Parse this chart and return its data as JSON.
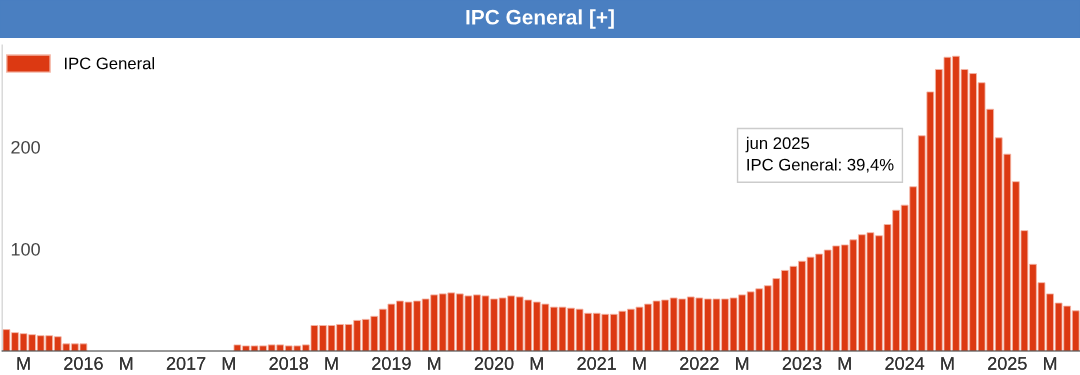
{
  "chart_data": {
    "type": "bar",
    "title": "IPC General [+]",
    "categories": [
      null,
      null,
      "M",
      null,
      null,
      null,
      null,
      null,
      null,
      "2016",
      null,
      null,
      null,
      null,
      "M",
      null,
      null,
      null,
      null,
      null,
      null,
      "2017",
      null,
      null,
      null,
      null,
      "M",
      null,
      null,
      null,
      null,
      null,
      null,
      "2018",
      null,
      null,
      null,
      null,
      "M",
      null,
      null,
      null,
      null,
      null,
      null,
      "2019",
      null,
      null,
      null,
      null,
      "M",
      null,
      null,
      null,
      null,
      null,
      null,
      "2020",
      null,
      null,
      null,
      null,
      "M",
      null,
      null,
      null,
      null,
      null,
      null,
      "2021",
      null,
      null,
      null,
      null,
      "M",
      null,
      null,
      null,
      null,
      null,
      null,
      "2022",
      null,
      null,
      null,
      null,
      "M",
      null,
      null,
      null,
      null,
      null,
      null,
      "2023",
      null,
      null,
      null,
      null,
      "M",
      null,
      null,
      null,
      null,
      null,
      null,
      "2024",
      null,
      null,
      null,
      null,
      "M",
      null,
      null,
      null,
      null,
      null,
      null,
      "2025",
      null,
      null,
      null,
      null,
      "M",
      null,
      null,
      null
    ],
    "series": [
      {
        "name": "IPC General",
        "color": "#dc3912",
        "values": [
          21,
          18,
          17,
          16,
          15,
          15,
          14,
          7,
          7,
          7,
          null,
          null,
          null,
          null,
          null,
          null,
          null,
          null,
          null,
          null,
          null,
          null,
          null,
          null,
          null,
          null,
          null,
          6,
          5,
          5,
          5,
          6,
          6,
          5,
          5,
          6,
          25,
          25,
          25,
          26,
          26,
          30,
          31,
          34,
          41,
          46,
          49,
          48,
          49,
          51,
          55,
          56,
          57,
          56,
          54,
          55,
          54,
          51,
          52,
          54,
          53,
          50,
          48,
          46,
          43,
          43,
          42,
          41,
          37,
          37,
          36,
          36,
          39,
          41,
          43,
          46,
          49,
          50,
          52,
          51,
          53,
          52,
          51,
          51,
          51,
          52,
          55,
          58,
          61,
          64,
          71,
          79,
          83,
          88,
          92,
          95,
          99,
          103,
          104,
          109,
          114,
          116,
          113,
          124,
          138,
          143,
          161,
          211,
          254,
          276,
          288,
          289,
          276,
          272,
          263,
          237,
          209,
          193,
          166,
          118,
          85,
          67,
          56,
          47,
          44,
          39.4
        ]
      }
    ],
    "ylim": [
      0,
      300
    ],
    "yticks": [
      100,
      200
    ],
    "grid": false,
    "legend": "top left",
    "annotations": [
      "jun 2025\nIPC General: 39,4%"
    ]
  }
}
